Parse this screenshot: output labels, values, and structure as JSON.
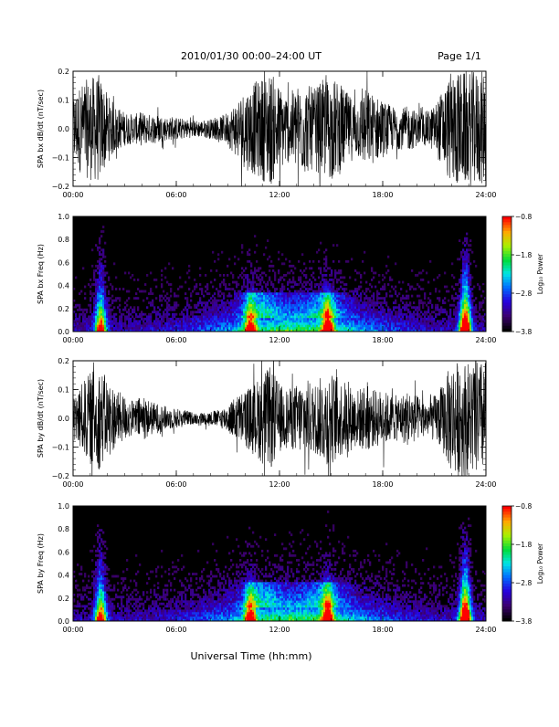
{
  "header": {
    "title": "2010/01/30  00:00–24:00 UT",
    "page": "Page 1/1"
  },
  "footer": {
    "xlabel": "Universal Time (hh:mm)"
  },
  "chart_data": [
    {
      "type": "line",
      "id": "bx",
      "ylabel": "SPA bx dB/dt (nT/sec)",
      "ylim": [
        -0.2,
        0.2
      ],
      "yticks": [
        "0.2",
        "0.1",
        "0.0",
        "−0.1",
        "−0.2"
      ],
      "xlim": [
        0,
        24
      ],
      "xticks": [
        "00:00",
        "06:00",
        "12:00",
        "18:00",
        "24:00"
      ],
      "envelope": {
        "hours": [
          0,
          0.5,
          1,
          1.5,
          2,
          2.5,
          3,
          3.5,
          4,
          4.5,
          5,
          5.5,
          6,
          6.5,
          7,
          7.5,
          8,
          8.5,
          9,
          9.5,
          10,
          10.5,
          11,
          11.5,
          12,
          12.5,
          13,
          13.5,
          14,
          14.5,
          15,
          15.5,
          16,
          16.5,
          17,
          17.5,
          18,
          18.5,
          19,
          19.5,
          20,
          20.5,
          21,
          21.5,
          22,
          22.5,
          23,
          23.5,
          24
        ],
        "amplitude": [
          0.12,
          0.16,
          0.18,
          0.19,
          0.12,
          0.08,
          0.06,
          0.05,
          0.06,
          0.05,
          0.05,
          0.04,
          0.04,
          0.035,
          0.03,
          0.03,
          0.035,
          0.04,
          0.06,
          0.1,
          0.14,
          0.16,
          0.18,
          0.2,
          0.15,
          0.12,
          0.15,
          0.16,
          0.14,
          0.17,
          0.18,
          0.16,
          0.12,
          0.1,
          0.14,
          0.12,
          0.1,
          0.08,
          0.07,
          0.08,
          0.06,
          0.06,
          0.08,
          0.14,
          0.2,
          0.2,
          0.2,
          0.2,
          0.2
        ]
      }
    },
    {
      "type": "heatmap",
      "id": "bx_freq",
      "ylabel": "SPA bx Freq (Hz)",
      "ylim": [
        0,
        1.0
      ],
      "yticks": [
        "1.0",
        "0.8",
        "0.6",
        "0.4",
        "0.2",
        "0.0"
      ],
      "xlim": [
        0,
        24
      ],
      "xticks": [
        "00:00",
        "06:00",
        "12:00",
        "18:00",
        "24:00"
      ],
      "colorbar": {
        "label": "Log₁₀ Power",
        "ticks": [
          "−0.8",
          "−1.8",
          "−2.8",
          "−3.8"
        ],
        "range": [
          -3.8,
          -0.8
        ]
      },
      "features": [
        {
          "hour": 1.6,
          "fmax": 0.95,
          "strength": 0.6
        },
        {
          "hour": 10.3,
          "fmax": 0.4,
          "strength": 0.5
        },
        {
          "hour": 14.8,
          "fmax": 0.45,
          "strength": 0.55
        },
        {
          "hour": 22.8,
          "fmax": 0.95,
          "strength": 0.85
        }
      ]
    },
    {
      "type": "line",
      "id": "by",
      "ylabel": "SPA by dB/dt (nT/sec)",
      "ylim": [
        -0.2,
        0.2
      ],
      "yticks": [
        "0.2",
        "0.1",
        "0.0",
        "−0.1",
        "−0.2"
      ],
      "xlim": [
        0,
        24
      ],
      "xticks": [
        "00:00",
        "06:00",
        "12:00",
        "18:00",
        "24:00"
      ],
      "envelope": {
        "hours": [
          0,
          0.5,
          1,
          1.5,
          2,
          2.5,
          3,
          3.5,
          4,
          4.5,
          5,
          5.5,
          6,
          6.5,
          7,
          7.5,
          8,
          8.5,
          9,
          9.5,
          10,
          10.5,
          11,
          11.5,
          12,
          12.5,
          13,
          13.5,
          14,
          14.5,
          15,
          15.5,
          16,
          16.5,
          17,
          17.5,
          18,
          18.5,
          19,
          19.5,
          20,
          20.5,
          21,
          21.5,
          22,
          22.5,
          23,
          23.5,
          24
        ],
        "amplitude": [
          0.08,
          0.12,
          0.16,
          0.18,
          0.14,
          0.1,
          0.08,
          0.06,
          0.08,
          0.06,
          0.05,
          0.04,
          0.035,
          0.03,
          0.02,
          0.02,
          0.025,
          0.03,
          0.05,
          0.08,
          0.1,
          0.12,
          0.16,
          0.18,
          0.12,
          0.1,
          0.12,
          0.14,
          0.12,
          0.15,
          0.16,
          0.14,
          0.12,
          0.1,
          0.12,
          0.1,
          0.1,
          0.08,
          0.08,
          0.1,
          0.08,
          0.06,
          0.08,
          0.12,
          0.2,
          0.2,
          0.2,
          0.2,
          0.2
        ]
      }
    },
    {
      "type": "heatmap",
      "id": "by_freq",
      "ylabel": "SPA by Freq (Hz)",
      "ylim": [
        0,
        1.0
      ],
      "yticks": [
        "1.0",
        "0.8",
        "0.6",
        "0.4",
        "0.2",
        "0.0"
      ],
      "xlim": [
        0,
        24
      ],
      "xticks": [
        "00:00",
        "06:00",
        "12:00",
        "18:00",
        "24:00"
      ],
      "colorbar": {
        "label": "Log₁₀ Power",
        "ticks": [
          "−0.8",
          "−1.8",
          "−2.8",
          "−3.8"
        ],
        "range": [
          -3.8,
          -0.8
        ]
      },
      "features": [
        {
          "hour": 1.6,
          "fmax": 0.95,
          "strength": 0.6
        },
        {
          "hour": 10.3,
          "fmax": 0.4,
          "strength": 0.5
        },
        {
          "hour": 14.8,
          "fmax": 0.45,
          "strength": 0.55
        },
        {
          "hour": 22.8,
          "fmax": 0.95,
          "strength": 0.85
        }
      ]
    }
  ]
}
